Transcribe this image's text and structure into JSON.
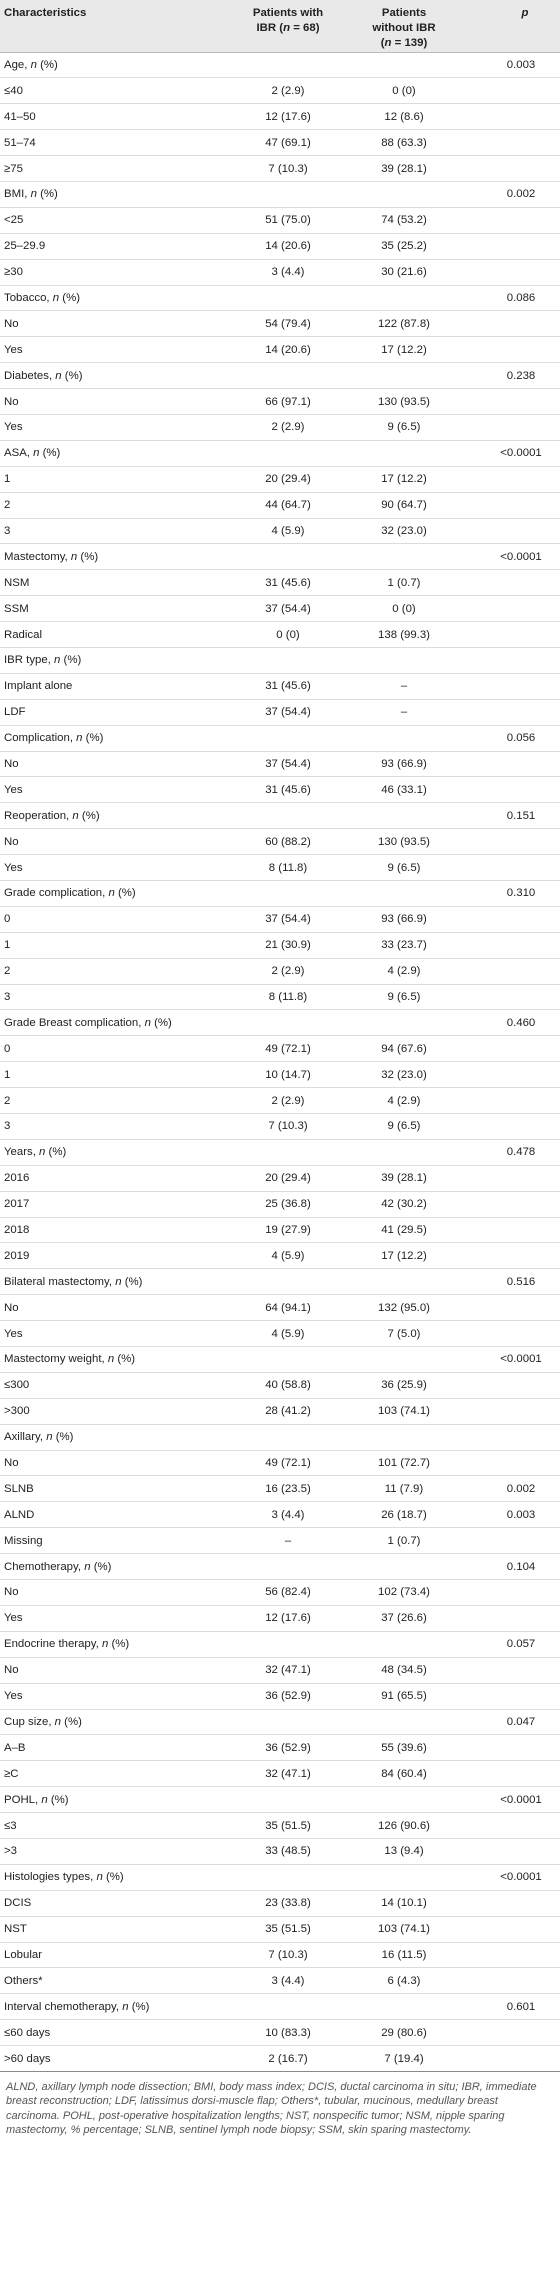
{
  "header": {
    "col1": "Characteristics",
    "col2_line1": "Patients with",
    "col2_line2_prefix": "IBR (",
    "col2_n": "n",
    "col2_line2_suffix": " = 68)",
    "col3_line1": "Patients",
    "col3_line2": "without IBR",
    "col3_line3_prefix": "(",
    "col3_n": "n",
    "col3_line3_suffix": " = 139)",
    "col4": "p"
  },
  "rows": [
    {
      "label": "Age, ",
      "n": "n",
      "suffix": " (%)",
      "ibr": "",
      "noibr": "",
      "p": "0.003"
    },
    {
      "label": "≤40",
      "ibr": "2 (2.9)",
      "noibr": "0 (0)",
      "p": ""
    },
    {
      "label": "41–50",
      "ibr": "12 (17.6)",
      "noibr": "12 (8.6)",
      "p": ""
    },
    {
      "label": "51–74",
      "ibr": "47 (69.1)",
      "noibr": "88 (63.3)",
      "p": ""
    },
    {
      "label": "≥75",
      "ibr": "7 (10.3)",
      "noibr": "39 (28.1)",
      "p": ""
    },
    {
      "label": "BMI, ",
      "n": "n",
      "suffix": " (%)",
      "ibr": "",
      "noibr": "",
      "p": "0.002"
    },
    {
      "label": "<25",
      "ibr": "51 (75.0)",
      "noibr": "74 (53.2)",
      "p": ""
    },
    {
      "label": "25–29.9",
      "ibr": "14 (20.6)",
      "noibr": "35 (25.2)",
      "p": ""
    },
    {
      "label": "≥30",
      "ibr": "3 (4.4)",
      "noibr": "30 (21.6)",
      "p": ""
    },
    {
      "label": "Tobacco, ",
      "n": "n",
      "suffix": " (%)",
      "ibr": "",
      "noibr": "",
      "p": "0.086"
    },
    {
      "label": "No",
      "ibr": "54 (79.4)",
      "noibr": "122 (87.8)",
      "p": ""
    },
    {
      "label": "Yes",
      "ibr": "14 (20.6)",
      "noibr": "17 (12.2)",
      "p": ""
    },
    {
      "label": "Diabetes, ",
      "n": "n",
      "suffix": " (%)",
      "ibr": "",
      "noibr": "",
      "p": "0.238"
    },
    {
      "label": "No",
      "ibr": "66 (97.1)",
      "noibr": "130 (93.5)",
      "p": ""
    },
    {
      "label": "Yes",
      "ibr": "2 (2.9)",
      "noibr": "9 (6.5)",
      "p": ""
    },
    {
      "label": "ASA, ",
      "n": "n",
      "suffix": " (%)",
      "ibr": "",
      "noibr": "",
      "p": "<0.0001"
    },
    {
      "label": "1",
      "ibr": "20 (29.4)",
      "noibr": "17 (12.2)",
      "p": ""
    },
    {
      "label": "2",
      "ibr": "44 (64.7)",
      "noibr": "90 (64.7)",
      "p": ""
    },
    {
      "label": "3",
      "ibr": "4 (5.9)",
      "noibr": "32 (23.0)",
      "p": ""
    },
    {
      "label": "Mastectomy, ",
      "n": "n",
      "suffix": " (%)",
      "ibr": "",
      "noibr": "",
      "p": "<0.0001"
    },
    {
      "label": "NSM",
      "ibr": "31 (45.6)",
      "noibr": "1 (0.7)",
      "p": ""
    },
    {
      "label": "SSM",
      "ibr": "37 (54.4)",
      "noibr": "0 (0)",
      "p": ""
    },
    {
      "label": "Radical",
      "ibr": "0 (0)",
      "noibr": "138 (99.3)",
      "p": ""
    },
    {
      "label": "IBR type, ",
      "n": "n",
      "suffix": " (%)",
      "ibr": "",
      "noibr": "",
      "p": ""
    },
    {
      "label": "Implant alone",
      "ibr": "31 (45.6)",
      "noibr": "–",
      "p": ""
    },
    {
      "label": "LDF",
      "ibr": "37 (54.4)",
      "noibr": "–",
      "p": ""
    },
    {
      "label": "Complication, ",
      "n": "n",
      "suffix": " (%)",
      "ibr": "",
      "noibr": "",
      "p": "0.056"
    },
    {
      "label": "No",
      "ibr": "37 (54.4)",
      "noibr": "93 (66.9)",
      "p": ""
    },
    {
      "label": "Yes",
      "ibr": "31 (45.6)",
      "noibr": "46 (33.1)",
      "p": ""
    },
    {
      "label": "Reoperation, ",
      "n": "n",
      "suffix": " (%)",
      "ibr": "",
      "noibr": "",
      "p": "0.151"
    },
    {
      "label": "No",
      "ibr": "60 (88.2)",
      "noibr": "130 (93.5)",
      "p": ""
    },
    {
      "label": "Yes",
      "ibr": "8 (11.8)",
      "noibr": "9 (6.5)",
      "p": ""
    },
    {
      "label": "Grade complication, ",
      "n": "n",
      "suffix": " (%)",
      "ibr": "",
      "noibr": "",
      "p": "0.310"
    },
    {
      "label": "0",
      "ibr": "37 (54.4)",
      "noibr": "93 (66.9)",
      "p": ""
    },
    {
      "label": "1",
      "ibr": "21 (30.9)",
      "noibr": "33 (23.7)",
      "p": ""
    },
    {
      "label": "2",
      "ibr": "2 (2.9)",
      "noibr": "4 (2.9)",
      "p": ""
    },
    {
      "label": "3",
      "ibr": "8 (11.8)",
      "noibr": "9 (6.5)",
      "p": ""
    },
    {
      "label": "Grade Breast complication, ",
      "n": "n",
      "suffix": " (%)",
      "ibr": "",
      "noibr": "",
      "p": "0.460"
    },
    {
      "label": "0",
      "ibr": "49 (72.1)",
      "noibr": "94 (67.6)",
      "p": ""
    },
    {
      "label": "1",
      "ibr": "10 (14.7)",
      "noibr": "32 (23.0)",
      "p": ""
    },
    {
      "label": "2",
      "ibr": "2 (2.9)",
      "noibr": "4 (2.9)",
      "p": ""
    },
    {
      "label": "3",
      "ibr": "7 (10.3)",
      "noibr": "9 (6.5)",
      "p": ""
    },
    {
      "label": "Years, ",
      "n": "n",
      "suffix": " (%)",
      "ibr": "",
      "noibr": "",
      "p": "0.478"
    },
    {
      "label": "2016",
      "ibr": "20 (29.4)",
      "noibr": "39 (28.1)",
      "p": ""
    },
    {
      "label": "2017",
      "ibr": "25 (36.8)",
      "noibr": "42 (30.2)",
      "p": ""
    },
    {
      "label": "2018",
      "ibr": "19 (27.9)",
      "noibr": "41 (29.5)",
      "p": ""
    },
    {
      "label": "2019",
      "ibr": "4 (5.9)",
      "noibr": "17 (12.2)",
      "p": ""
    },
    {
      "label": "Bilateral mastectomy, ",
      "n": "n",
      "suffix": " (%)",
      "ibr": "",
      "noibr": "",
      "p": "0.516"
    },
    {
      "label": "No",
      "ibr": "64 (94.1)",
      "noibr": "132 (95.0)",
      "p": ""
    },
    {
      "label": "Yes",
      "ibr": "4 (5.9)",
      "noibr": "7 (5.0)",
      "p": ""
    },
    {
      "label": "Mastectomy weight, ",
      "n": "n",
      "suffix": " (%)",
      "ibr": "",
      "noibr": "",
      "p": "<0.0001"
    },
    {
      "label": "≤300",
      "ibr": "40 (58.8)",
      "noibr": "36 (25.9)",
      "p": ""
    },
    {
      "label": ">300",
      "ibr": "28 (41.2)",
      "noibr": "103 (74.1)",
      "p": ""
    },
    {
      "label": "Axillary, ",
      "n": "n",
      "suffix": " (%)",
      "ibr": "",
      "noibr": "",
      "p": ""
    },
    {
      "label": "No",
      "ibr": "49 (72.1)",
      "noibr": "101 (72.7)",
      "p": ""
    },
    {
      "label": "SLNB",
      "ibr": "16 (23.5)",
      "noibr": "11 (7.9)",
      "p": "0.002"
    },
    {
      "label": "ALND",
      "ibr": "3 (4.4)",
      "noibr": "26 (18.7)",
      "p": "0.003"
    },
    {
      "label": "Missing",
      "ibr": "–",
      "noibr": "1 (0.7)",
      "p": ""
    },
    {
      "label": "Chemotherapy, ",
      "n": "n",
      "suffix": " (%)",
      "ibr": "",
      "noibr": "",
      "p": "0.104"
    },
    {
      "label": "No",
      "ibr": "56 (82.4)",
      "noibr": "102 (73.4)",
      "p": ""
    },
    {
      "label": "Yes",
      "ibr": "12 (17.6)",
      "noibr": "37 (26.6)",
      "p": ""
    },
    {
      "label": "Endocrine therapy, ",
      "n": "n",
      "suffix": " (%)",
      "ibr": "",
      "noibr": "",
      "p": "0.057"
    },
    {
      "label": "No",
      "ibr": "32 (47.1)",
      "noibr": "48 (34.5)",
      "p": ""
    },
    {
      "label": "Yes",
      "ibr": "36 (52.9)",
      "noibr": "91 (65.5)",
      "p": ""
    },
    {
      "label": "Cup size, ",
      "n": "n",
      "suffix": " (%)",
      "ibr": "",
      "noibr": "",
      "p": "0.047"
    },
    {
      "label": "A–B",
      "ibr": "36 (52.9)",
      "noibr": "55 (39.6)",
      "p": ""
    },
    {
      "label": "≥C",
      "ibr": "32 (47.1)",
      "noibr": "84 (60.4)",
      "p": ""
    },
    {
      "label": "POHL, ",
      "n": "n",
      "suffix": " (%)",
      "ibr": "",
      "noibr": "",
      "p": "<0.0001"
    },
    {
      "label": "≤3",
      "ibr": "35 (51.5)",
      "noibr": "126 (90.6)",
      "p": ""
    },
    {
      "label": ">3",
      "ibr": "33 (48.5)",
      "noibr": "13 (9.4)",
      "p": ""
    },
    {
      "label": "Histologies types, ",
      "n": "n",
      "suffix": " (%)",
      "ibr": "",
      "noibr": "",
      "p": "<0.0001"
    },
    {
      "label": "DCIS",
      "ibr": "23 (33.8)",
      "noibr": "14 (10.1)",
      "p": ""
    },
    {
      "label": "NST",
      "ibr": "35 (51.5)",
      "noibr": "103 (74.1)",
      "p": ""
    },
    {
      "label": "Lobular",
      "ibr": "7 (10.3)",
      "noibr": "16 (11.5)",
      "p": ""
    },
    {
      "label": "Others*",
      "ibr": "3 (4.4)",
      "noibr": "6 (4.3)",
      "p": ""
    },
    {
      "label": "Interval chemotherapy, ",
      "n": "n",
      "suffix": " (%)",
      "ibr": "",
      "noibr": "",
      "p": "0.601"
    },
    {
      "label": "≤60 days",
      "ibr": "10 (83.3)",
      "noibr": "29 (80.6)",
      "p": ""
    },
    {
      "label": ">60 days",
      "ibr": "2 (16.7)",
      "noibr": "7 (19.4)",
      "p": ""
    }
  ],
  "footnote": "ALND, axillary lymph node dissection; BMI, body mass index; DCIS, ductal carcinoma in situ; IBR, immediate breast reconstruction; LDF, latissimus dorsi-muscle flap; Others*, tubular, mucinous, medullary breast carcinoma. POHL, post-operative hospitalization lengths; NST, nonspecific tumor; NSM, nipple sparing mastectomy, % percentage; SLNB, sentinel lymph node biopsy; SSM, skin sparing mastectomy."
}
